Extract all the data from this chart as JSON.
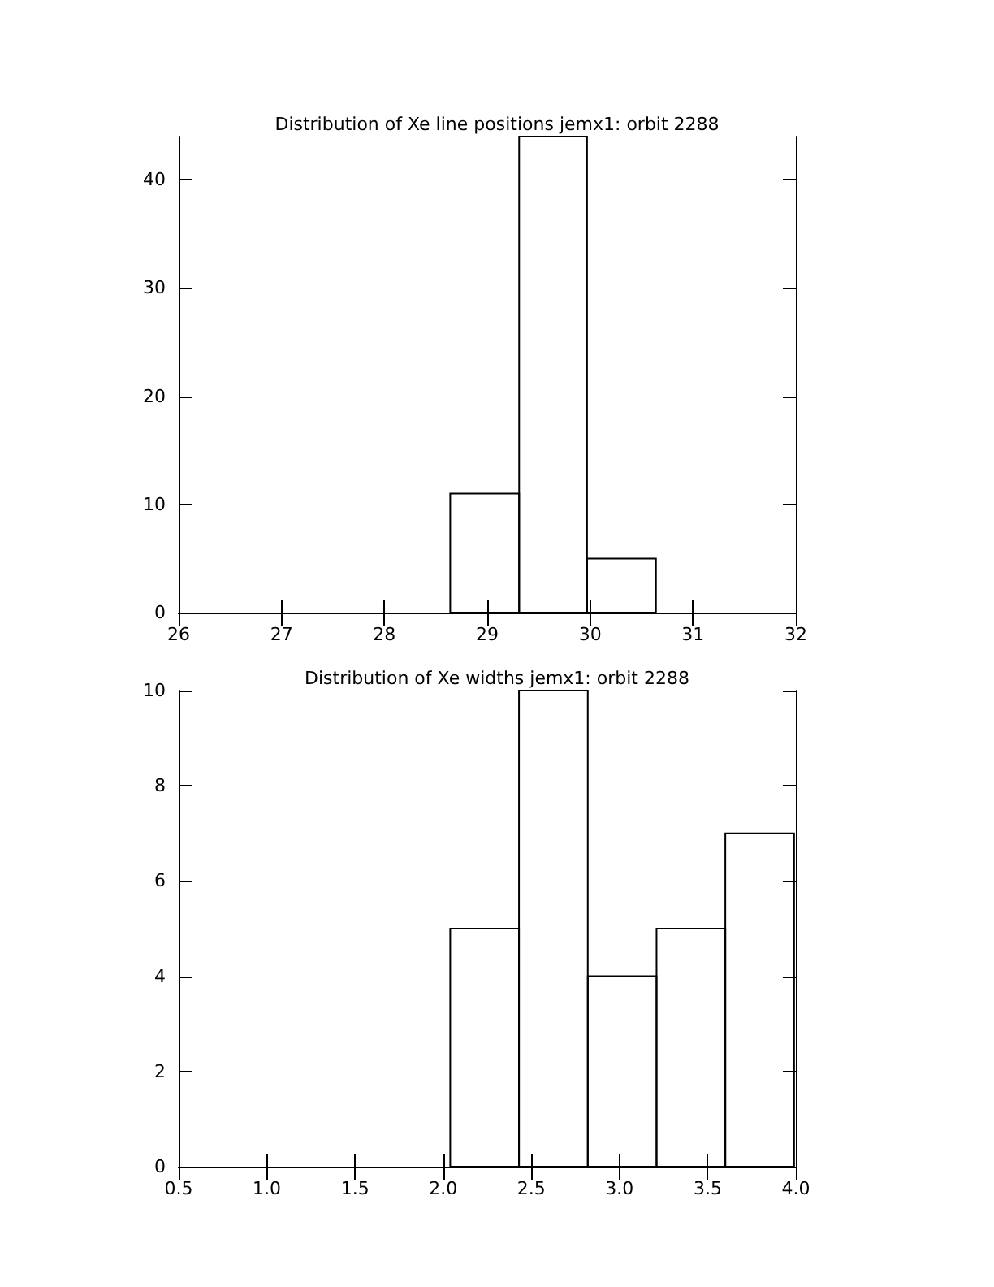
{
  "chart_data": [
    {
      "type": "histogram",
      "title": "Distribution of Xe line positions jemx1: orbit 2288",
      "bins": [
        28.64,
        29.31,
        29.97,
        30.64
      ],
      "values": [
        11,
        44,
        5
      ],
      "color": "#000000",
      "xlim": [
        26,
        32
      ],
      "xticks": [
        26,
        27,
        28,
        29,
        30,
        31,
        32
      ],
      "ylim": [
        0,
        44
      ],
      "yticks": [
        0,
        10,
        20,
        30,
        40
      ],
      "grid": false
    },
    {
      "type": "histogram",
      "title": "Distribution of Xe widths jemx1: orbit 2288",
      "bins": [
        2.04,
        2.43,
        2.82,
        3.21,
        3.6,
        3.99
      ],
      "values": [
        5,
        10,
        4,
        5,
        7
      ],
      "color": "#000000",
      "xlim": [
        0.5,
        4.0
      ],
      "xticks": [
        {
          "value": 0.5,
          "label": "0.5"
        },
        {
          "value": 1,
          "label": "1.0"
        },
        {
          "value": 1.5,
          "label": "1.5"
        },
        {
          "value": 2,
          "label": "2.0"
        },
        {
          "value": 2.5,
          "label": "2.5"
        },
        {
          "value": 3,
          "label": "3.0"
        },
        {
          "value": 3.5,
          "label": "3.5"
        },
        {
          "value": 4,
          "label": "4.0"
        }
      ],
      "ylim": [
        0,
        10
      ],
      "yticks": [
        0,
        2,
        4,
        6,
        8,
        10
      ],
      "grid": false
    }
  ]
}
